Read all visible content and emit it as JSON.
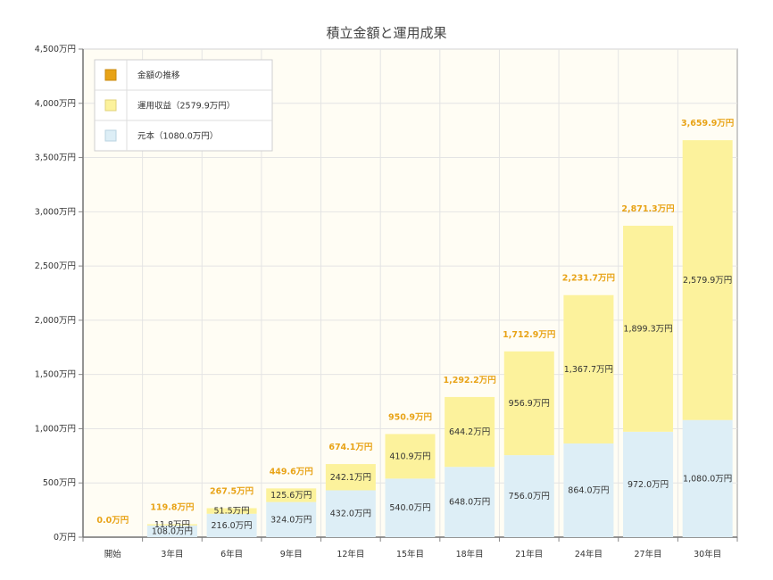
{
  "chart_data": {
    "type": "bar",
    "stacked": true,
    "title": "積立金額と運用成果",
    "categories": [
      "開始",
      "3年目",
      "6年目",
      "9年目",
      "12年目",
      "15年目",
      "18年目",
      "21年目",
      "24年目",
      "27年目",
      "30年目"
    ],
    "ylim": [
      0,
      4500
    ],
    "y_ticks": [
      0,
      500,
      1000,
      1500,
      2000,
      2500,
      3000,
      3500,
      4000,
      4500
    ],
    "y_tick_labels": [
      "0万円",
      "500万円",
      "1,000万円",
      "1,500万円",
      "2,000万円",
      "2,500万円",
      "3,000万円",
      "3,500万円",
      "4,000万円",
      "4,500万円"
    ],
    "legend_position": "top-left",
    "series": [
      {
        "name": "元本（1080.0万円）",
        "color": "#ddeef6",
        "values": [
          0,
          108.0,
          216.0,
          324.0,
          432.0,
          540.0,
          648.0,
          756.0,
          864.0,
          972.0,
          1080.0
        ],
        "labels": [
          "",
          "108.0万円",
          "216.0万円",
          "324.0万円",
          "432.0万円",
          "540.0万円",
          "648.0万円",
          "756.0万円",
          "864.0万円",
          "972.0万円",
          "1,080.0万円"
        ]
      },
      {
        "name": "運用収益（2579.9万円）",
        "color": "#fcf29c",
        "values": [
          0,
          11.8,
          51.5,
          125.6,
          242.1,
          410.9,
          644.2,
          956.9,
          1367.7,
          1899.3,
          2579.9
        ],
        "labels": [
          "",
          "11.8万円",
          "51.5万円",
          "125.6万円",
          "242.1万円",
          "410.9万円",
          "644.2万円",
          "956.9万円",
          "1,367.7万円",
          "1,899.3万円",
          "2,579.9万円"
        ]
      }
    ],
    "total_series": {
      "name": "金額の推移",
      "color": "#e8a317",
      "values": [
        0.0,
        119.8,
        267.5,
        449.6,
        674.1,
        950.9,
        1292.2,
        1712.9,
        2231.7,
        2871.3,
        3659.9
      ],
      "labels": [
        "0.0万円",
        "119.8万円",
        "267.5万円",
        "449.6万円",
        "674.1万円",
        "950.9万円",
        "1,292.2万円",
        "1,712.9万円",
        "2,231.7万円",
        "2,871.3万円",
        "3,659.9万円"
      ]
    },
    "colors": {
      "plot_background": "#fffdf4",
      "grid": "#e4e4e4",
      "frame": "#aaaaaa"
    }
  }
}
